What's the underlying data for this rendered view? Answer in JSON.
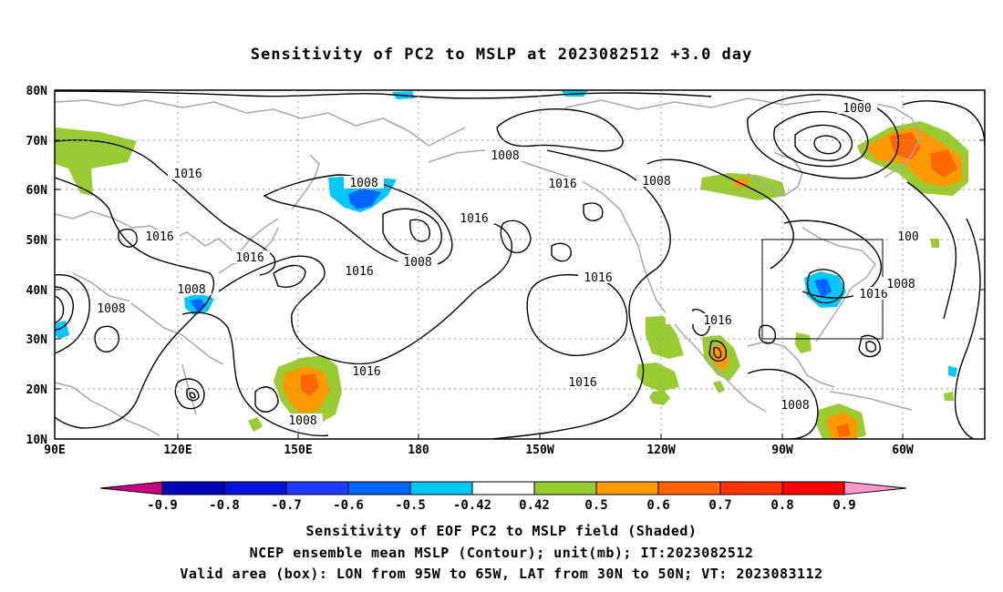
{
  "title": "Sensitivity of PC2 to MSLP at 2023082512 +3.0 day",
  "map": {
    "lat_labels": [
      "80N",
      "70N",
      "60N",
      "50N",
      "40N",
      "30N",
      "20N",
      "10N"
    ],
    "lon_labels": [
      "90E",
      "120E",
      "150E",
      "180",
      "150W",
      "120W",
      "90W",
      "60W"
    ],
    "contour_labels": [
      "1000",
      "1008",
      "1008",
      "1008",
      "1008",
      "1008",
      "1008",
      "1008",
      "1008",
      "1016",
      "1016",
      "1016",
      "1016",
      "1016",
      "1016",
      "1016",
      "1016",
      "1016",
      "1016",
      "1016",
      "1008",
      "100"
    ],
    "valid_box": {
      "lon_from": "95W",
      "lon_to": "65W",
      "lat_from": "30N",
      "lat_to": "50N"
    }
  },
  "colorbar": {
    "labels": [
      "-0.9",
      "-0.8",
      "-0.7",
      "-0.6",
      "-0.5",
      "-0.42",
      "0.42",
      "0.5",
      "0.6",
      "0.7",
      "0.8",
      "0.9"
    ],
    "colors": [
      "#0000b4",
      "#0014dc",
      "#1e3cff",
      "#0064ff",
      "#00c8ff",
      "#ffffff",
      "#99cc33",
      "#ff9900",
      "#ff6600",
      "#ff3300",
      "#ff0000"
    ],
    "low_end_color": "#c8007f",
    "high_end_color": "#ff99cc"
  },
  "captions": [
    "Sensitivity of EOF PC2 to MSLP field (Shaded)",
    "NCEP ensemble mean MSLP (Contour); unit(mb); IT:2023082512",
    "Valid area (box): LON from 95W to 65W, LAT from 30N to 50N; VT: 2023083112"
  ]
}
